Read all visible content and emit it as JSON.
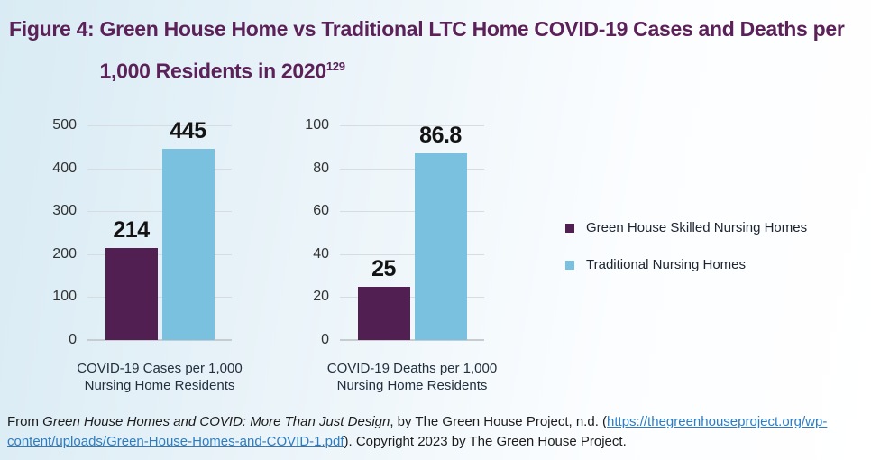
{
  "figure": {
    "title_prefix": "Figure 4: ",
    "title_line1": "Green House Home vs Traditional LTC Home COVID-19 Cases and Deaths per",
    "title_line2": "1,000 Residents in 2020",
    "title_superscript": "129"
  },
  "colors": {
    "green_house_purple": "#521f53",
    "traditional_blue": "#79c1df",
    "title_text": "#5b2158",
    "link_blue": "#2e7cc0",
    "gridline": "#d7dce0"
  },
  "legend": {
    "items": [
      {
        "label": "Green House Skilled Nursing Homes",
        "color": "#521f53"
      },
      {
        "label": "Traditional Nursing Homes",
        "color": "#79c1df"
      }
    ]
  },
  "chart_data": [
    {
      "type": "bar",
      "categories": [
        "Green House Skilled Nursing Homes",
        "Traditional Nursing Homes"
      ],
      "values": [
        214,
        445
      ],
      "value_labels": [
        "214",
        "445"
      ],
      "bar_colors": [
        "#521f53",
        "#79c1df"
      ],
      "xlabel": "COVID-19 Cases per 1,000 Nursing Home Residents",
      "ylabel": "",
      "ylim": [
        0,
        500
      ],
      "yticks": [
        0,
        100,
        200,
        300,
        400,
        500
      ],
      "grid": true,
      "legend_position": "right-of-second-chart"
    },
    {
      "type": "bar",
      "categories": [
        "Green House Skilled Nursing Homes",
        "Traditional Nursing Homes"
      ],
      "values": [
        25,
        86.8
      ],
      "value_labels": [
        "25",
        "86.8"
      ],
      "bar_colors": [
        "#521f53",
        "#79c1df"
      ],
      "xlabel": "COVID-19 Deaths per 1,000 Nursing Home Residents",
      "ylabel": "",
      "ylim": [
        0,
        100
      ],
      "yticks": [
        0,
        20,
        40,
        60,
        80,
        100
      ],
      "grid": true,
      "legend_position": "right-of-second-chart"
    }
  ],
  "citation": {
    "prefix": "From ",
    "italic_title": "Green House Homes and COVID: More Than Just Design",
    "middle": ", by The Green House Project, n.d. (",
    "link_text": "https://thegreenhouseproject.org/wp-content/uploads/Green-House-Homes-and-COVID-1.pdf",
    "suffix": "). Copyright 2023 by The Green House Project."
  }
}
